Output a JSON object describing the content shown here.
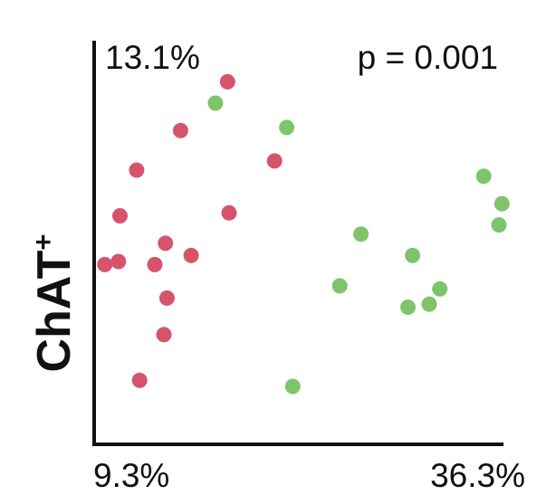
{
  "chart_data": {
    "type": "scatter",
    "ylabel": "ChAT",
    "ylabel_superscript": "+",
    "x_tick_labels": [
      "9.3%",
      "36.3%"
    ],
    "y_tick_labels": [
      "13.1%"
    ],
    "annotations": [
      "p = 0.001"
    ],
    "xlim": [
      9.3,
      36.3
    ],
    "ylim": [
      0,
      13.1
    ],
    "grid": false,
    "legend": "none",
    "series": [
      {
        "color": "#d6546b",
        "points": [
          [
            10.0,
            5.9
          ],
          [
            10.9,
            6.0
          ],
          [
            11.0,
            7.5
          ],
          [
            12.1,
            9.0
          ],
          [
            12.3,
            2.1
          ],
          [
            13.3,
            5.9
          ],
          [
            13.9,
            3.6
          ],
          [
            14.0,
            6.6
          ],
          [
            14.1,
            4.8
          ],
          [
            15.0,
            10.3
          ],
          [
            15.7,
            6.2
          ],
          [
            18.1,
            11.9
          ],
          [
            18.2,
            7.6
          ],
          [
            21.2,
            9.3
          ]
        ]
      },
      {
        "color": "#7fc46a",
        "points": [
          [
            17.3,
            11.2
          ],
          [
            22.0,
            10.4
          ],
          [
            22.4,
            1.9
          ],
          [
            25.5,
            5.2
          ],
          [
            26.9,
            6.9
          ],
          [
            30.0,
            4.5
          ],
          [
            30.3,
            6.2
          ],
          [
            31.4,
            4.6
          ],
          [
            32.1,
            5.1
          ],
          [
            35.0,
            8.8
          ],
          [
            36.0,
            7.2
          ],
          [
            36.2,
            7.9
          ]
        ]
      }
    ]
  }
}
